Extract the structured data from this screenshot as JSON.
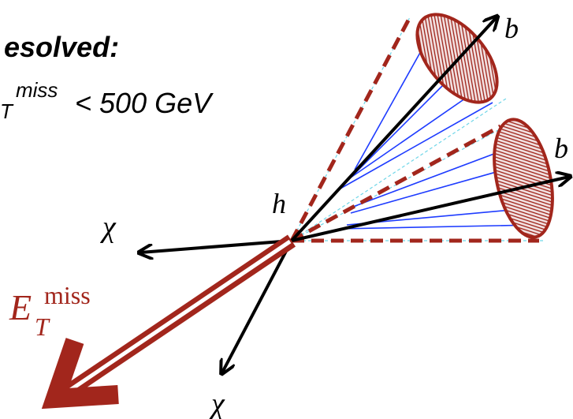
{
  "header": {
    "title": "esolved:",
    "cut": {
      "sub": "T",
      "sup": "miss",
      "text": "< 500 GeV"
    }
  },
  "labels": {
    "b_upper": "b",
    "b_lower": "b",
    "higgs": "h",
    "chi_left": "χ",
    "chi_bottom": "χ",
    "met": {
      "base": "E",
      "sub": "T",
      "sup": "miss"
    }
  }
}
